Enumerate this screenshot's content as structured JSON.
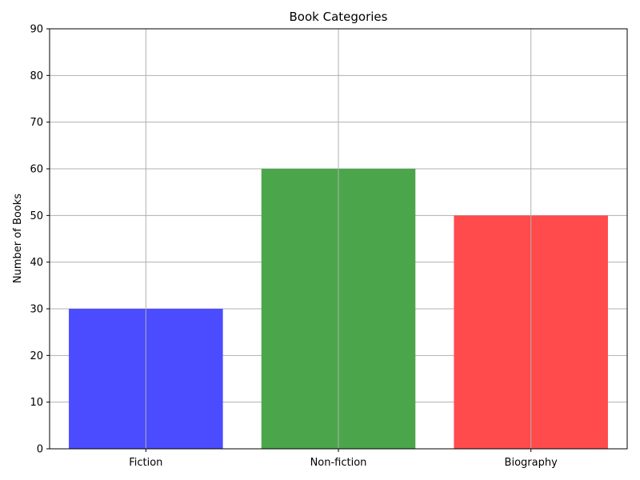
{
  "chart_data": {
    "type": "bar",
    "title": "Book Categories",
    "xlabel": "",
    "ylabel": "Number of Books",
    "categories": [
      "Fiction",
      "Non-fiction",
      "Biography"
    ],
    "values": [
      30,
      60,
      50
    ],
    "colors": [
      "#4b4bff",
      "#4ba64b",
      "#ff4b4b"
    ],
    "ylim": [
      0,
      90
    ],
    "yticks": [
      0,
      10,
      20,
      30,
      40,
      50,
      60,
      70,
      80,
      90
    ],
    "grid": true
  }
}
